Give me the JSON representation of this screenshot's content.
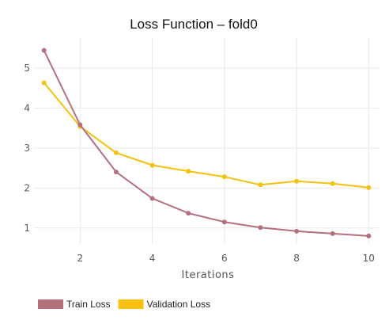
{
  "chart_data": {
    "type": "line",
    "title": "Loss Function – fold0",
    "xlabel": "Iterations",
    "ylabel": "",
    "xlim": [
      0.7,
      10.3
    ],
    "ylim": [
      0.6,
      5.75
    ],
    "x_ticks": [
      2,
      4,
      6,
      8,
      10
    ],
    "y_ticks": [
      1,
      2,
      3,
      4,
      5
    ],
    "grid": true,
    "legend_position": "bottom-left",
    "x": [
      1,
      2,
      3,
      4,
      5,
      6,
      7,
      8,
      9,
      10
    ],
    "series": [
      {
        "name": "Train Loss",
        "color": "#b5707e",
        "values": [
          5.44,
          3.58,
          2.4,
          1.74,
          1.37,
          1.15,
          1.01,
          0.92,
          0.86,
          0.8
        ]
      },
      {
        "name": "Validation Loss",
        "color": "#f5c10e",
        "values": [
          4.63,
          3.54,
          2.88,
          2.57,
          2.42,
          2.28,
          2.08,
          2.17,
          2.11,
          2.01
        ]
      }
    ]
  }
}
